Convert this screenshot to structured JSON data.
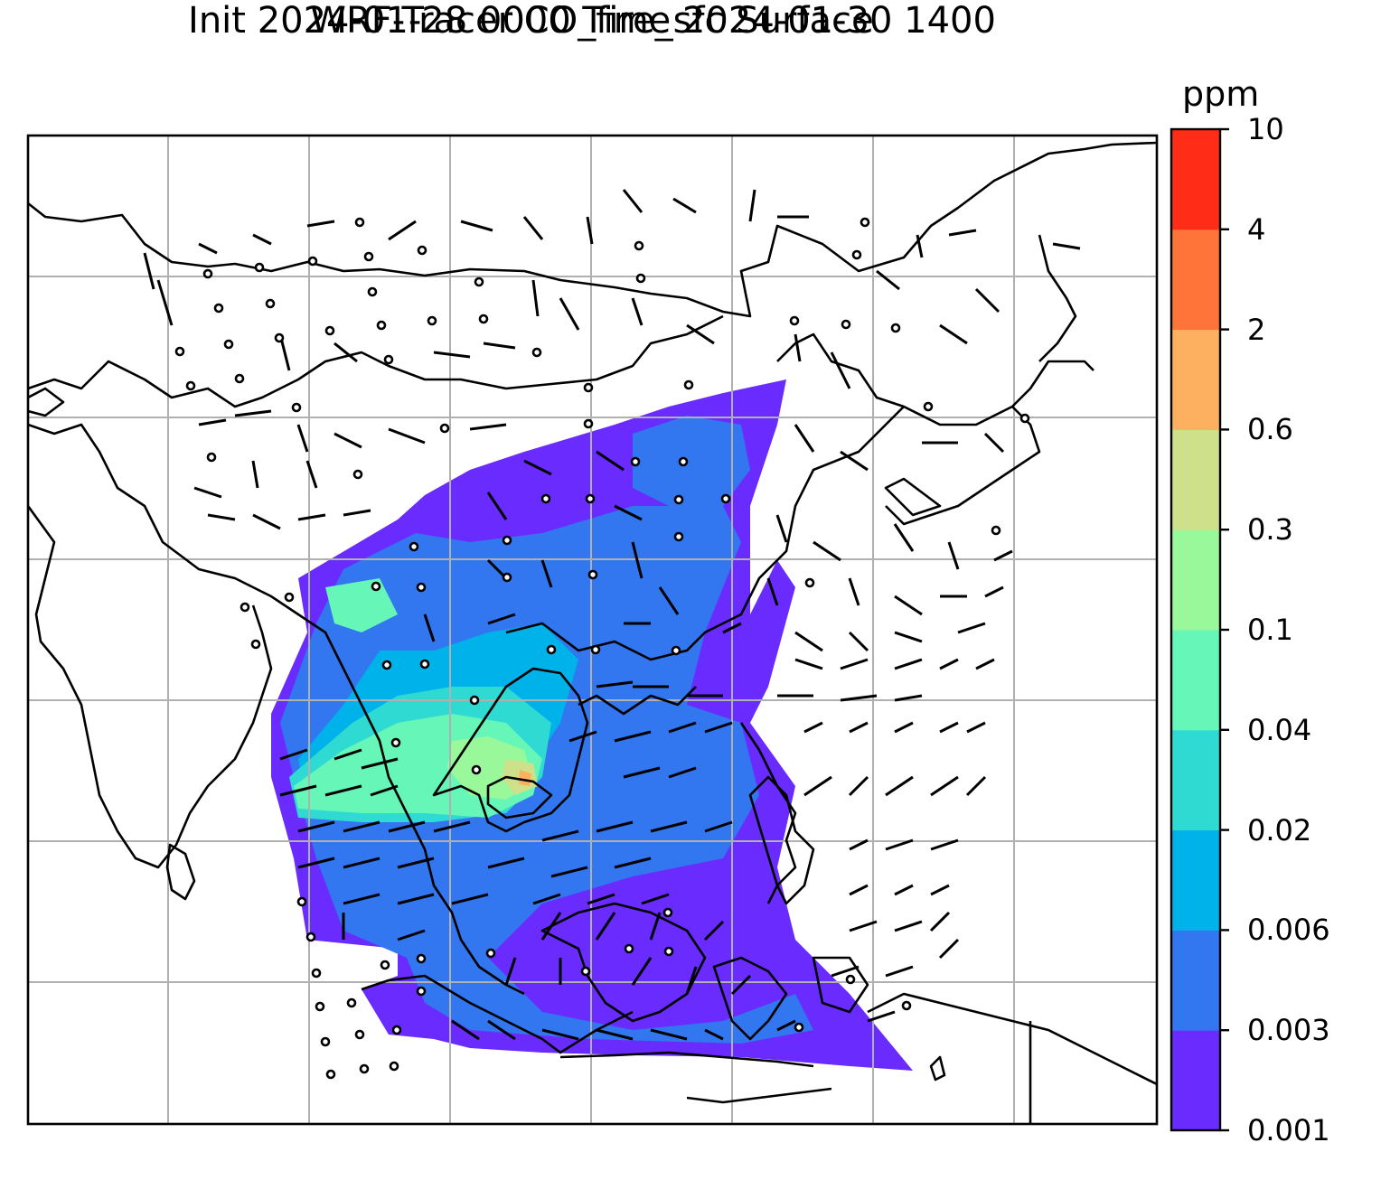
{
  "title_line1": "WRF-Tracer CO_fire_sfc Surface",
  "title_line2": "Init 2024-01-28 0000 Time 2024-01-30 1400",
  "colorbar": {
    "unit": "ppm",
    "ticks": [
      "0.001",
      "0.003",
      "0.006",
      "0.02",
      "0.04",
      "0.1",
      "0.3",
      "0.6",
      "2",
      "4",
      "10"
    ],
    "colors": [
      "#6a2bff",
      "#3276f0",
      "#00b2ea",
      "#2fdad2",
      "#66f6b8",
      "#99f99a",
      "#cfe08a",
      "#fdb060",
      "#ff7438",
      "#ff2c18"
    ]
  },
  "map": {
    "background": "#ffffff",
    "gridline_color": "#b0b0b0",
    "coastline_color": "#000000",
    "wind_barb_color": "#000000"
  }
}
